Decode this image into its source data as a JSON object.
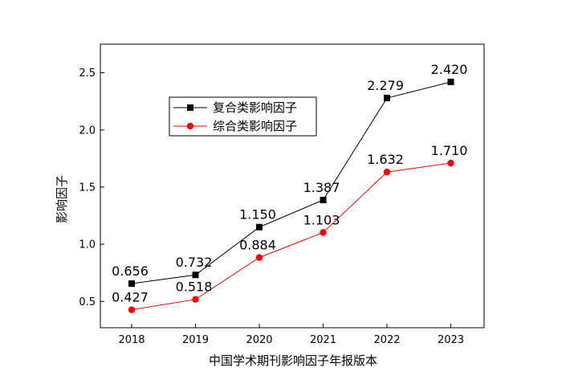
{
  "chart_data": {
    "type": "line",
    "title": "",
    "xlabel": "中国学术期刊影响因子年报版本",
    "ylabel": "影响因子",
    "categories": [
      "2018",
      "2019",
      "2020",
      "2021",
      "2022",
      "2023"
    ],
    "ylim": [
      0.27,
      2.75
    ],
    "yticks": [
      "0.5",
      "1.0",
      "1.5",
      "2.0",
      "2.5"
    ],
    "grid": false,
    "legend_position": "upper-left",
    "series": [
      {
        "name": "复合类影响因子",
        "color": "#000000",
        "marker": "square",
        "values": [
          0.656,
          0.732,
          1.15,
          1.387,
          2.279,
          2.42
        ],
        "labels": [
          "0.656",
          "0.732",
          "1.150",
          "1.387",
          "2.279",
          "2.420"
        ]
      },
      {
        "name": "综合类影响因子",
        "color": "#ff0000",
        "marker": "circle",
        "values": [
          0.427,
          0.518,
          0.884,
          1.103,
          1.632,
          1.71
        ],
        "labels": [
          "0.427",
          "0.518",
          "0.884",
          "1.103",
          "1.632",
          "1.710"
        ]
      }
    ]
  }
}
